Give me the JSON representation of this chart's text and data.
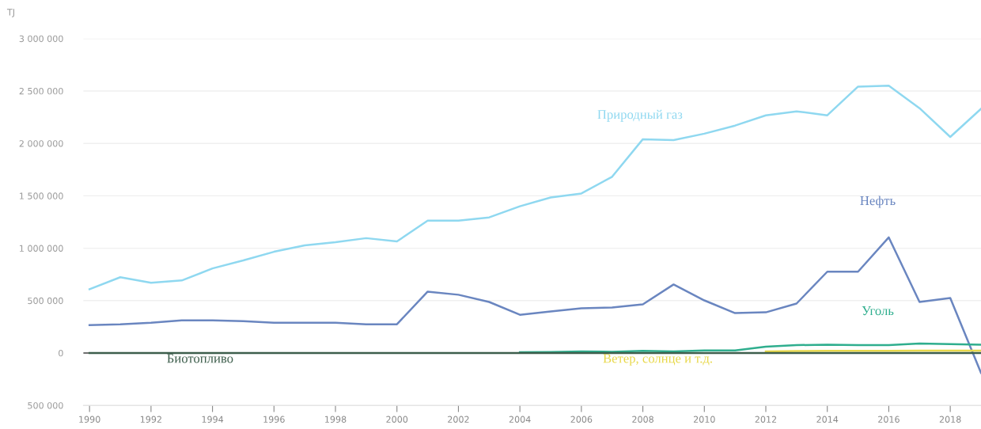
{
  "chart_data": {
    "type": "line",
    "ylabel": "TJ",
    "x": [
      1990,
      1991,
      1992,
      1993,
      1994,
      1995,
      1996,
      1997,
      1998,
      1999,
      2000,
      2001,
      2002,
      2003,
      2004,
      2005,
      2006,
      2007,
      2008,
      2009,
      2010,
      2011,
      2012,
      2013,
      2014,
      2015,
      2016,
      2017,
      2018,
      2019
    ],
    "series": [
      {
        "name": "Природный газ",
        "color": "#8fd8f0",
        "values": [
          609000,
          723000,
          670000,
          692000,
          807000,
          883000,
          966000,
          1027000,
          1058000,
          1096000,
          1065000,
          1263000,
          1263000,
          1294000,
          1400000,
          1484000,
          1522000,
          1682000,
          2040000,
          2032000,
          2093000,
          2170000,
          2268000,
          2306000,
          2268000,
          2542000,
          2550000,
          2336000,
          2062000,
          2330000
        ]
      },
      {
        "name": "Нефть",
        "color": "#6a86c0",
        "values": [
          266000,
          274000,
          289000,
          312000,
          312000,
          304000,
          289000,
          289000,
          289000,
          274000,
          274000,
          586000,
          556000,
          487000,
          365000,
          396000,
          426000,
          434000,
          464000,
          654000,
          502000,
          381000,
          388000,
          472000,
          776000,
          776000,
          1103000,
          487000,
          525000,
          -190000
        ]
      },
      {
        "name": "Уголь",
        "color": "#2fae8e",
        "values": [
          null,
          null,
          null,
          null,
          null,
          null,
          null,
          null,
          null,
          null,
          null,
          null,
          null,
          null,
          8000,
          10000,
          15000,
          12000,
          20000,
          15000,
          25000,
          25000,
          60000,
          75000,
          80000,
          75000,
          75000,
          90000,
          85000,
          80000
        ]
      },
      {
        "name": "Биотопливо",
        "color": "#3d5e4c",
        "values": [
          0,
          0,
          0,
          0,
          0,
          0,
          0,
          0,
          0,
          0,
          0,
          0,
          0,
          0,
          0,
          0,
          0,
          0,
          0,
          0,
          0,
          0,
          0,
          0,
          0,
          0,
          0,
          0,
          0,
          0
        ]
      },
      {
        "name": "Ветер, солнце и т.д.",
        "color": "#e8d84a",
        "values": [
          null,
          null,
          null,
          null,
          null,
          null,
          null,
          null,
          null,
          null,
          null,
          null,
          null,
          null,
          null,
          null,
          null,
          null,
          null,
          null,
          null,
          null,
          15000,
          18000,
          20000,
          20000,
          20000,
          22000,
          22000,
          22000
        ]
      }
    ],
    "xlim": [
      1989.8,
      2019
    ],
    "xticks": [
      1990,
      1992,
      1994,
      1996,
      1998,
      2000,
      2002,
      2004,
      2006,
      2008,
      2010,
      2012,
      2014,
      2016,
      2018
    ],
    "ylim": [
      -500000,
      3000000
    ],
    "yticks": [
      {
        "value": -500000,
        "label": "500 000"
      },
      {
        "value": 0,
        "label": "0"
      },
      {
        "value": 500000,
        "label": "500 000"
      },
      {
        "value": 1000000,
        "label": "1 000 000"
      },
      {
        "value": 1500000,
        "label": "1 500 000"
      },
      {
        "value": 2000000,
        "label": "2 000 000"
      },
      {
        "value": 2500000,
        "label": "2 500 000"
      },
      {
        "value": 3000000,
        "label": "3 000 000"
      }
    ],
    "grid": "y",
    "marker": "none",
    "line_style": "solid",
    "legend": false
  }
}
